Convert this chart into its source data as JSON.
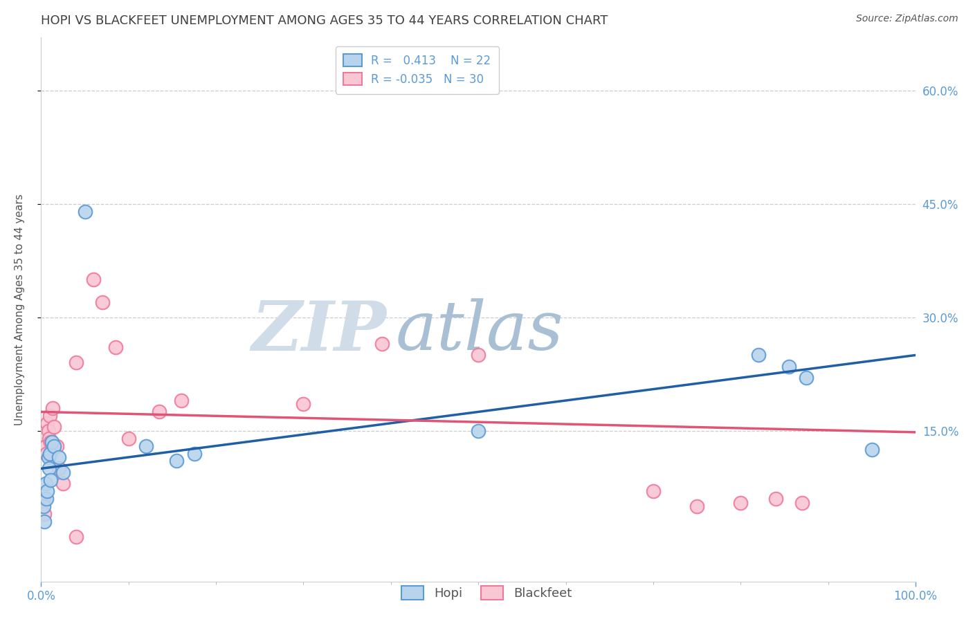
{
  "title": "HOPI VS BLACKFEET UNEMPLOYMENT AMONG AGES 35 TO 44 YEARS CORRELATION CHART",
  "source": "Source: ZipAtlas.com",
  "ylabel": "Unemployment Among Ages 35 to 44 years",
  "xlim": [
    0.0,
    1.0
  ],
  "ylim": [
    -0.05,
    0.67
  ],
  "ytick_positions": [
    0.15,
    0.3,
    0.45,
    0.6
  ],
  "ytick_labels": [
    "15.0%",
    "30.0%",
    "45.0%",
    "60.0%"
  ],
  "hopi_color": "#b8d4ec",
  "blackfeet_color": "#f9c6d4",
  "hopi_edge_color": "#5b9bd5",
  "blackfeet_edge_color": "#f07898",
  "hopi_line_color": "#1f5fa6",
  "blackfeet_line_color": "#e05575",
  "hopi_R": 0.413,
  "hopi_N": 22,
  "blackfeet_R": -0.035,
  "blackfeet_N": 30,
  "background_color": "#ffffff",
  "grid_color": "#cccccc",
  "axis_color": "#5b9bd5",
  "title_color": "#404040",
  "marker_size": 200,
  "hopi_x": [
    0.003,
    0.004,
    0.005,
    0.006,
    0.007,
    0.008,
    0.009,
    0.01,
    0.011,
    0.012,
    0.015,
    0.02,
    0.025,
    0.05,
    0.12,
    0.155,
    0.175,
    0.5,
    0.82,
    0.855,
    0.875,
    0.95
  ],
  "hopi_y": [
    0.05,
    0.03,
    0.08,
    0.06,
    0.07,
    0.115,
    0.1,
    0.12,
    0.085,
    0.135,
    0.13,
    0.115,
    0.095,
    0.44,
    0.13,
    0.11,
    0.12,
    0.15,
    0.25,
    0.235,
    0.22,
    0.125
  ],
  "blackfeet_x": [
    0.003,
    0.004,
    0.005,
    0.006,
    0.007,
    0.008,
    0.009,
    0.01,
    0.011,
    0.013,
    0.015,
    0.018,
    0.02,
    0.025,
    0.04,
    0.06,
    0.07,
    0.085,
    0.1,
    0.135,
    0.16,
    0.3,
    0.39,
    0.5,
    0.7,
    0.75,
    0.8,
    0.84,
    0.87,
    0.04
  ],
  "blackfeet_y": [
    0.06,
    0.04,
    0.13,
    0.12,
    0.16,
    0.15,
    0.14,
    0.17,
    0.135,
    0.18,
    0.155,
    0.13,
    0.1,
    0.08,
    0.24,
    0.35,
    0.32,
    0.26,
    0.14,
    0.175,
    0.19,
    0.185,
    0.265,
    0.25,
    0.07,
    0.05,
    0.055,
    0.06,
    0.055,
    0.01
  ],
  "watermark_zip_color": "#c8d8e8",
  "watermark_atlas_color": "#a8c8e8"
}
